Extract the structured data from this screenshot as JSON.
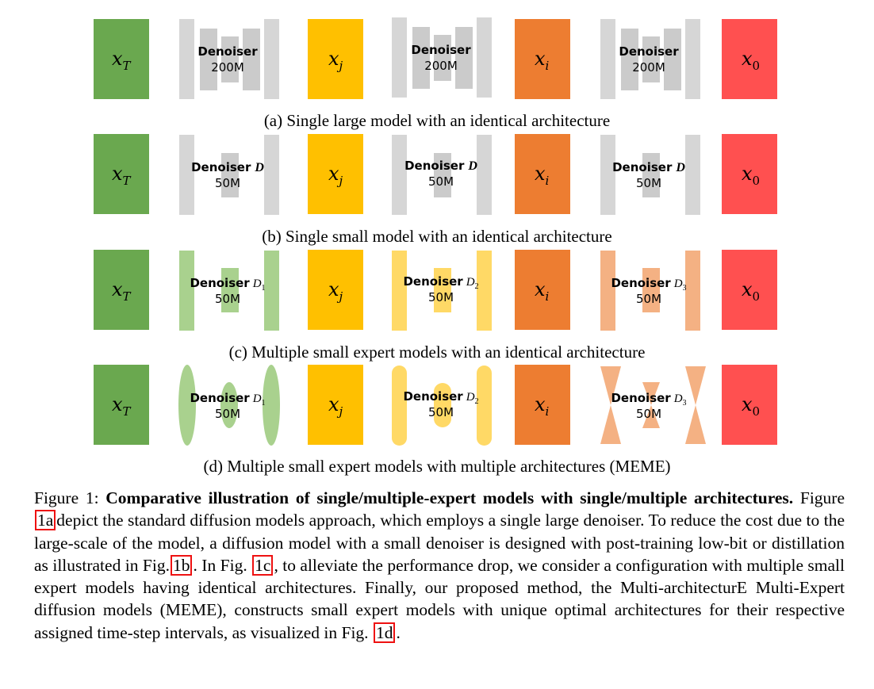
{
  "colors": {
    "xT": "#6aa84f",
    "xj": "#ffc000",
    "xi": "#ed7d31",
    "x0": "#ff5050",
    "gray_outer": "#d6d6d6",
    "gray_mid": "#cbcbcb",
    "green_block": "#a9d18e",
    "yellow_block": "#ffd966",
    "orange_block": "#f4b183",
    "ref_border": "#ee1111"
  },
  "latents": [
    {
      "base": "x",
      "sub": "T"
    },
    {
      "base": "x",
      "sub": "j"
    },
    {
      "base": "x",
      "sub": "i"
    },
    {
      "base": "x",
      "sub": "0"
    }
  ],
  "rows": [
    {
      "caption": "(a) Single large model with an identical architecture",
      "denoisers": [
        {
          "name": "Denoiser",
          "var": "",
          "idx": "",
          "size": "200M"
        },
        {
          "name": "Denoiser",
          "var": "",
          "idx": "",
          "size": "200M"
        },
        {
          "name": "Denoiser",
          "var": "",
          "idx": "",
          "size": "200M"
        }
      ]
    },
    {
      "caption": "(b) Single small model with an identical architecture",
      "denoisers": [
        {
          "name": "Denoiser",
          "var": "D",
          "idx": "",
          "size": "50M"
        },
        {
          "name": "Denoiser",
          "var": "D",
          "idx": "",
          "size": "50M"
        },
        {
          "name": "Denoiser",
          "var": "D",
          "idx": "",
          "size": "50M"
        }
      ]
    },
    {
      "caption": "(c) Multiple small expert models with an identical architecture",
      "denoisers": [
        {
          "name": "Denoiser",
          "var": "D",
          "idx": "1",
          "size": "50M"
        },
        {
          "name": "Denoiser",
          "var": "D",
          "idx": "2",
          "size": "50M"
        },
        {
          "name": "Denoiser",
          "var": "D",
          "idx": "3",
          "size": "50M"
        }
      ]
    },
    {
      "caption": "(d) Multiple small expert models with multiple architectures (MEME)",
      "denoisers": [
        {
          "name": "Denoiser",
          "var": "D",
          "idx": "1",
          "size": "50M"
        },
        {
          "name": "Denoiser",
          "var": "D",
          "idx": "2",
          "size": "50M"
        },
        {
          "name": "Denoiser",
          "var": "D",
          "idx": "3",
          "size": "50M"
        }
      ]
    }
  ],
  "caption": {
    "label": "Figure 1:",
    "title": "Comparative illustration of single/multiple-expert models with single/multiple architectures.",
    "seg1": "Figure",
    "ref1": "1a",
    "seg2": "depict the standard diffusion models approach, which employs a single large denoiser. To reduce the cost due to the large-scale of the model, a diffusion model with a small denoiser is designed with post-training low-bit or distillation as illustrated in Fig.",
    "ref2": "1b",
    "seg3": ". In Fig.",
    "ref3": "1c",
    "seg4": ", to alleviate the performance drop, we consider a configuration with multiple small expert models having identical architectures. Finally, our proposed method, the Multi-architecturE Multi-Expert diffusion models (MEME), constructs small expert models with unique optimal architectures for their respective assigned time-step intervals, as visualized in Fig.",
    "ref4": "1d",
    "seg5": "."
  }
}
